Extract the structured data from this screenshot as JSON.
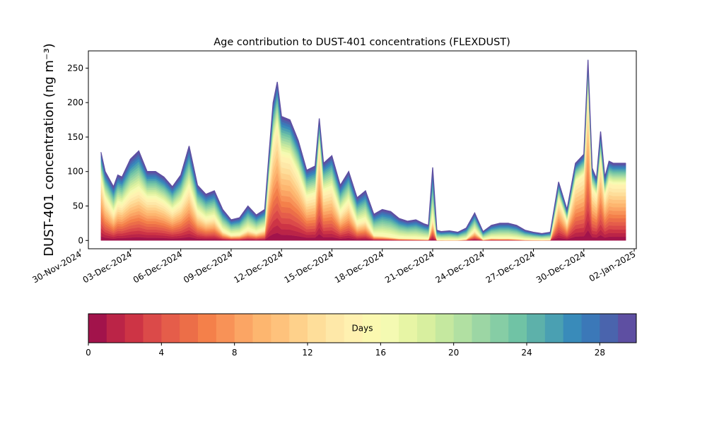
{
  "chart_data": {
    "type": "area",
    "stacked": true,
    "title": "Age contribution to DUST-401 concentrations (FLEXDUST)",
    "ylabel": "DUST-401 concentration (ng m⁻³)",
    "xlabel": "",
    "ylim": [
      -12,
      275
    ],
    "xlim": [
      "2024-11-30T12:00",
      "2025-01-02T03:00"
    ],
    "grid": false,
    "x_ticks": [
      "30-Nov-2024",
      "03-Dec-2024",
      "06-Dec-2024",
      "09-Dec-2024",
      "12-Dec-2024",
      "15-Dec-2024",
      "18-Dec-2024",
      "21-Dec-2024",
      "24-Dec-2024",
      "27-Dec-2024",
      "30-Dec-2024",
      "02-Jan-2025"
    ],
    "y_ticks": [
      0,
      50,
      100,
      150,
      200,
      250
    ],
    "x": [
      "2024-12-01T06:00",
      "2024-12-01T12:00",
      "2024-12-02T00:00",
      "2024-12-02T06:00",
      "2024-12-02T12:00",
      "2024-12-03T00:00",
      "2024-12-03T12:00",
      "2024-12-04T00:00",
      "2024-12-04T12:00",
      "2024-12-05T00:00",
      "2024-12-05T12:00",
      "2024-12-06T00:00",
      "2024-12-06T12:00",
      "2024-12-07T00:00",
      "2024-12-07T12:00",
      "2024-12-08T00:00",
      "2024-12-08T12:00",
      "2024-12-09T00:00",
      "2024-12-09T12:00",
      "2024-12-10T00:00",
      "2024-12-10T12:00",
      "2024-12-11T00:00",
      "2024-12-11T06:00",
      "2024-12-11T12:00",
      "2024-12-11T18:00",
      "2024-12-12T00:00",
      "2024-12-12T12:00",
      "2024-12-13T00:00",
      "2024-12-13T12:00",
      "2024-12-14T00:00",
      "2024-12-14T06:00",
      "2024-12-14T12:00",
      "2024-12-15T00:00",
      "2024-12-15T12:00",
      "2024-12-16T00:00",
      "2024-12-16T12:00",
      "2024-12-17T00:00",
      "2024-12-17T12:00",
      "2024-12-18T00:00",
      "2024-12-18T12:00",
      "2024-12-19T00:00",
      "2024-12-19T12:00",
      "2024-12-20T00:00",
      "2024-12-20T12:00",
      "2024-12-20T18:00",
      "2024-12-21T00:00",
      "2024-12-21T06:00",
      "2024-12-21T12:00",
      "2024-12-22T00:00",
      "2024-12-22T12:00",
      "2024-12-23T00:00",
      "2024-12-23T12:00",
      "2024-12-24T00:00",
      "2024-12-24T12:00",
      "2024-12-25T00:00",
      "2024-12-25T12:00",
      "2024-12-26T00:00",
      "2024-12-26T12:00",
      "2024-12-27T00:00",
      "2024-12-27T12:00",
      "2024-12-28T00:00",
      "2024-12-28T12:00",
      "2024-12-29T00:00",
      "2024-12-29T12:00",
      "2024-12-30T00:00",
      "2024-12-30T06:00",
      "2024-12-30T12:00",
      "2024-12-30T18:00",
      "2024-12-31T00:00",
      "2024-12-31T06:00",
      "2024-12-31T12:00",
      "2024-12-31T18:00",
      "2025-01-01T00:00",
      "2025-01-01T06:00",
      "2025-01-01T12:00"
    ],
    "total": [
      128,
      100,
      78,
      95,
      92,
      118,
      130,
      100,
      100,
      92,
      78,
      95,
      137,
      80,
      67,
      72,
      45,
      30,
      33,
      50,
      37,
      45,
      125,
      200,
      230,
      180,
      175,
      145,
      102,
      108,
      177,
      112,
      123,
      80,
      100,
      62,
      72,
      38,
      45,
      42,
      32,
      28,
      30,
      24,
      22,
      106,
      15,
      13,
      14,
      12,
      18,
      40,
      13,
      22,
      25,
      25,
      22,
      15,
      12,
      10,
      12,
      85,
      45,
      112,
      125,
      262,
      105,
      90,
      158,
      92,
      115,
      112,
      112,
      112,
      112
    ],
    "young_fraction_0_15_days": [
      0.7,
      0.6,
      0.5,
      0.55,
      0.55,
      0.55,
      0.55,
      0.6,
      0.6,
      0.58,
      0.55,
      0.55,
      0.55,
      0.5,
      0.45,
      0.45,
      0.3,
      0.25,
      0.25,
      0.3,
      0.3,
      0.35,
      0.7,
      0.7,
      0.72,
      0.68,
      0.68,
      0.65,
      0.6,
      0.6,
      0.8,
      0.62,
      0.6,
      0.5,
      0.55,
      0.4,
      0.4,
      0.2,
      0.15,
      0.12,
      0.1,
      0.1,
      0.08,
      0.08,
      0.08,
      0.3,
      0.05,
      0.05,
      0.05,
      0.05,
      0.1,
      0.35,
      0.1,
      0.15,
      0.12,
      0.12,
      0.1,
      0.08,
      0.08,
      0.08,
      0.08,
      0.7,
      0.6,
      0.75,
      0.75,
      0.85,
      0.7,
      0.72,
      0.75,
      0.7,
      0.72,
      0.72,
      0.72,
      0.72,
      0.72
    ],
    "colorbar": {
      "label": "Days",
      "min": 0,
      "max": 30,
      "ticks": [
        0,
        4,
        8,
        12,
        16,
        20,
        24,
        28
      ],
      "colors": [
        "#a2134b",
        "#bb2447",
        "#cd3445",
        "#db4a49",
        "#e55d4a",
        "#ec6e48",
        "#f4804a",
        "#f89257",
        "#fba564",
        "#fdb66f",
        "#fec27c",
        "#fed18b",
        "#fede9a",
        "#fee8a8",
        "#fff1b0",
        "#fbf8b0",
        "#f4fab2",
        "#e7f5a5",
        "#d8ef9f",
        "#c5e89f",
        "#b1e0a2",
        "#9cd6a4",
        "#86cda5",
        "#70c3a5",
        "#5db1aa",
        "#4aa0b2",
        "#398bba",
        "#3b78b8",
        "#4a64ad",
        "#5e4fa2"
      ]
    }
  }
}
